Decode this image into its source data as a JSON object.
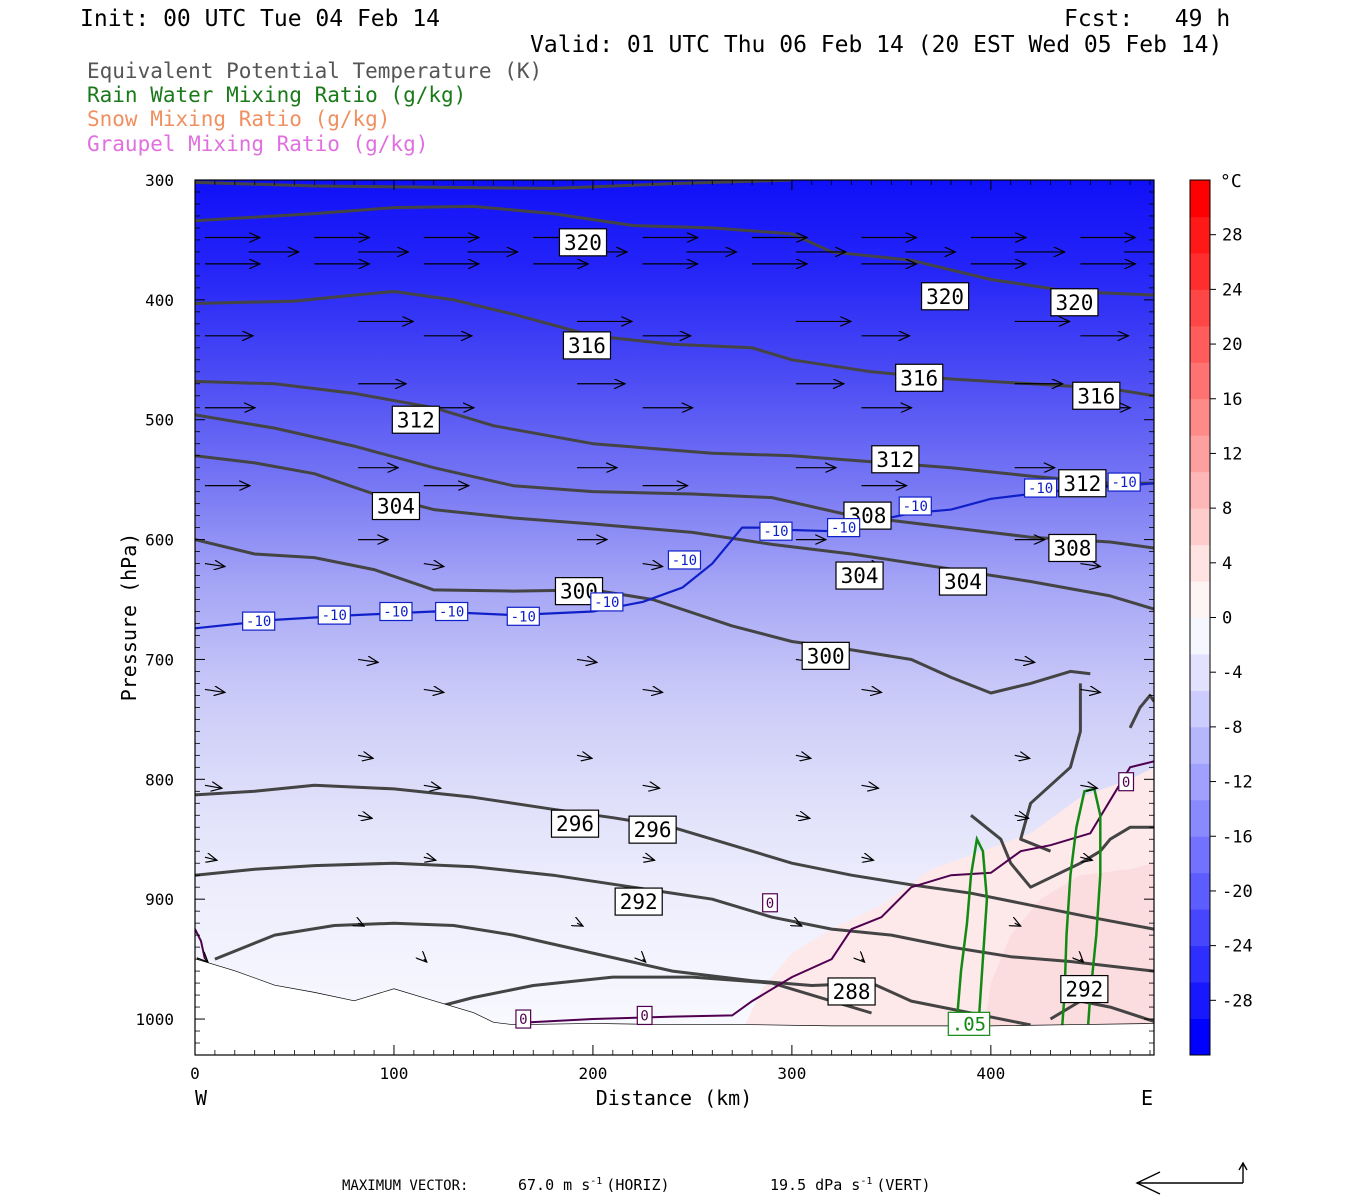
{
  "header": {
    "init": "Init: 00 UTC Tue 04 Feb 14",
    "fcst": "Fcst:   49 h",
    "valid": "Valid: 01 UTC Thu 06 Feb 14 (20 EST Wed 05 Feb 14)",
    "legend": [
      {
        "text": "Equivalent Potential Temperature (K)",
        "color": "#555555"
      },
      {
        "text": "Rain Water Mixing Ratio (g/kg)",
        "color": "#1a7a1a"
      },
      {
        "text": "Snow Mixing Ratio (g/kg)",
        "color": "#f09060"
      },
      {
        "text": "Graupel Mixing Ratio (g/kg)",
        "color": "#e070e0"
      }
    ]
  },
  "footer": {
    "max_label": "MAXIMUM VECTOR:",
    "horiz": "67.0 m s",
    "horiz_unit": "(HORIZ)",
    "vert": "19.5 dPa s",
    "vert_unit": "(VERT)",
    "exp": "-1"
  },
  "chart_data": {
    "type": "contour",
    "xlabel": "Distance (km)",
    "ylabel": "Pressure (hPa)",
    "x_ticks": [
      0,
      100,
      200,
      300,
      400
    ],
    "y_ticks": [
      300,
      400,
      500,
      600,
      700,
      800,
      900,
      1000
    ],
    "xlim": [
      0,
      482
    ],
    "ylim": [
      1030,
      300
    ],
    "left_label": "W",
    "right_label": "E",
    "colorbar": {
      "unit": "°C",
      "ticks": [
        28,
        24,
        20,
        16,
        12,
        8,
        4,
        0,
        -4,
        -8,
        -12,
        -16,
        -20,
        -24,
        -28
      ],
      "min": -32,
      "max": 32,
      "colors": [
        "#0000ff",
        "#1818ff",
        "#2e2eff",
        "#4646ff",
        "#5c5cff",
        "#7272ff",
        "#8a8aff",
        "#a0a0ff",
        "#b6b6ff",
        "#ccccff",
        "#e2e2ff",
        "#f6f6ff",
        "#fff4f4",
        "#ffe2e2",
        "#ffcccc",
        "#ffb6b6",
        "#ffa0a0",
        "#ff8a8a",
        "#ff7272",
        "#ff5c5c",
        "#ff4646",
        "#ff2e2e",
        "#ff1818",
        "#ff0000"
      ]
    },
    "theta_e_labels": [
      {
        "value": "320",
        "x": 195,
        "p": 352
      },
      {
        "value": "320",
        "x": 377,
        "p": 397
      },
      {
        "value": "320",
        "x": 442,
        "p": 402
      },
      {
        "value": "316",
        "x": 197,
        "p": 438
      },
      {
        "value": "316",
        "x": 364,
        "p": 465
      },
      {
        "value": "316",
        "x": 453,
        "p": 480
      },
      {
        "value": "312",
        "x": 111,
        "p": 500
      },
      {
        "value": "312",
        "x": 352,
        "p": 533
      },
      {
        "value": "312",
        "x": 446,
        "p": 553
      },
      {
        "value": "308",
        "x": 338,
        "p": 580
      },
      {
        "value": "308",
        "x": 441,
        "p": 607
      },
      {
        "value": "304",
        "x": 101,
        "p": 572
      },
      {
        "value": "304",
        "x": 334,
        "p": 630
      },
      {
        "value": "304",
        "x": 386,
        "p": 635
      },
      {
        "value": "300",
        "x": 193,
        "p": 643
      },
      {
        "value": "300",
        "x": 317,
        "p": 697
      },
      {
        "value": "296",
        "x": 191,
        "p": 837
      },
      {
        "value": "296",
        "x": 230,
        "p": 842
      },
      {
        "value": "292",
        "x": 223,
        "p": 902
      },
      {
        "value": "292",
        "x": 447,
        "p": 975
      },
      {
        "value": "288",
        "x": 330,
        "p": 977
      }
    ],
    "temp_labels": [
      {
        "value": "-10",
        "x": 32,
        "p": 668
      },
      {
        "value": "-10",
        "x": 70,
        "p": 663
      },
      {
        "value": "-10",
        "x": 101,
        "p": 660
      },
      {
        "value": "-10",
        "x": 129,
        "p": 660
      },
      {
        "value": "-10",
        "x": 165,
        "p": 664
      },
      {
        "value": "-10",
        "x": 207,
        "p": 652
      },
      {
        "value": "-10",
        "x": 246,
        "p": 617
      },
      {
        "value": "-10",
        "x": 292,
        "p": 593
      },
      {
        "value": "-10",
        "x": 326,
        "p": 590
      },
      {
        "value": "-10",
        "x": 362,
        "p": 572
      },
      {
        "value": "-10",
        "x": 425,
        "p": 557
      },
      {
        "value": "-10",
        "x": 467,
        "p": 552
      },
      {
        "value": "0",
        "x": 165,
        "p": 1000
      },
      {
        "value": "0",
        "x": 226,
        "p": 997
      },
      {
        "value": "0",
        "x": 289,
        "p": 903
      },
      {
        "value": "0",
        "x": 468,
        "p": 802
      }
    ],
    "rain_labels": [
      {
        "value": ".05",
        "x": 389,
        "p": 1004
      }
    ]
  }
}
